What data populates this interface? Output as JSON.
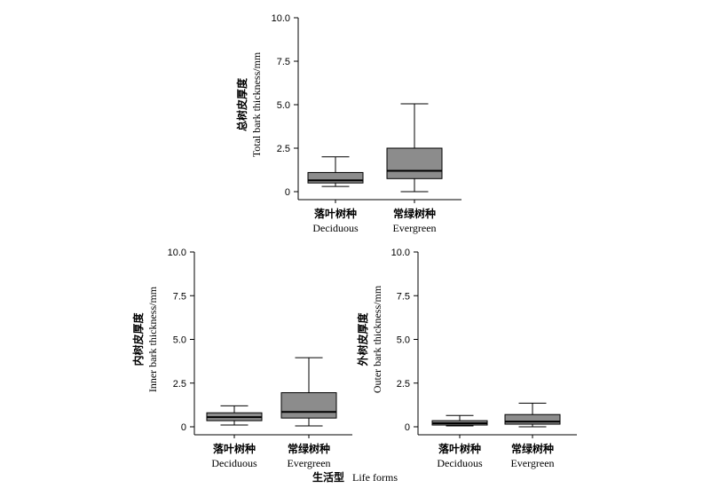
{
  "x_title": {
    "zh": "生活型",
    "en": "Life forms"
  },
  "chart_data": [
    {
      "type": "box",
      "ylabel_zh": "总树皮厚度",
      "ylabel_en": "Total bark thickness/mm",
      "ylim": [
        0,
        10
      ],
      "yticks": [
        "0",
        "2.5",
        "5.0",
        "7.5",
        "10.0"
      ],
      "categories": [
        {
          "zh": "落叶树种",
          "en": "Deciduous"
        },
        {
          "zh": "常绿树种",
          "en": "Evergreen"
        }
      ],
      "boxes": [
        {
          "min": 0.3,
          "q1": 0.5,
          "median": 0.65,
          "q3": 1.1,
          "max": 2.0
        },
        {
          "min": 0.0,
          "q1": 0.75,
          "median": 1.2,
          "q3": 2.5,
          "max": 5.05
        }
      ]
    },
    {
      "type": "box",
      "ylabel_zh": "内树皮厚度",
      "ylabel_en": "Inner bark thickness/mm",
      "ylim": [
        0,
        10
      ],
      "yticks": [
        "0",
        "2.5",
        "5.0",
        "7.5",
        "10.0"
      ],
      "categories": [
        {
          "zh": "落叶树种",
          "en": "Deciduous"
        },
        {
          "zh": "常绿树种",
          "en": "Evergreen"
        }
      ],
      "boxes": [
        {
          "min": 0.1,
          "q1": 0.35,
          "median": 0.55,
          "q3": 0.8,
          "max": 1.2
        },
        {
          "min": 0.05,
          "q1": 0.5,
          "median": 0.85,
          "q3": 1.95,
          "max": 3.95
        }
      ]
    },
    {
      "type": "box",
      "ylabel_zh": "外树皮厚度",
      "ylabel_en": "Outer bark thickness/mm",
      "ylim": [
        0,
        10
      ],
      "yticks": [
        "0",
        "2.5",
        "5.0",
        "7.5",
        "10.0"
      ],
      "categories": [
        {
          "zh": "落叶树种",
          "en": "Deciduous"
        },
        {
          "zh": "常绿树种",
          "en": "Evergreen"
        }
      ],
      "boxes": [
        {
          "min": 0.05,
          "q1": 0.1,
          "median": 0.2,
          "q3": 0.35,
          "max": 0.65
        },
        {
          "min": 0.0,
          "q1": 0.15,
          "median": 0.3,
          "q3": 0.7,
          "max": 1.35
        }
      ]
    }
  ]
}
